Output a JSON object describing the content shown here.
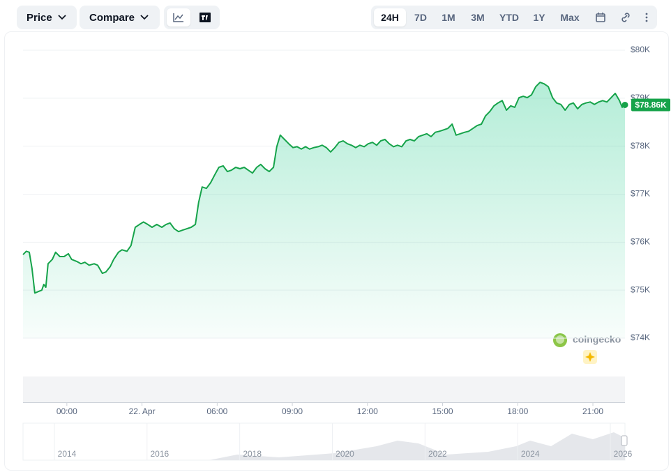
{
  "toolbar": {
    "price": "Price",
    "compare": "Compare",
    "ranges": [
      "24H",
      "7D",
      "1M",
      "3M",
      "YTD",
      "1Y",
      "Max"
    ]
  },
  "watermark": "coingecko",
  "navigator": {
    "years": [
      "2014",
      "2016",
      "2018",
      "2020",
      "2022",
      "2024",
      "2026"
    ]
  },
  "chart_data": {
    "type": "line",
    "color": "#16a34a",
    "fill": true,
    "grid": true,
    "x": [
      -1.75,
      -1.62,
      -1.5,
      -1.39,
      -1.28,
      -1.14,
      -1.0,
      -0.92,
      -0.84,
      -0.75,
      -0.58,
      -0.45,
      -0.28,
      -0.11,
      0.06,
      0.19,
      0.39,
      0.56,
      0.72,
      0.89,
      1.09,
      1.23,
      1.42,
      1.56,
      1.73,
      1.87,
      2.06,
      2.2,
      2.4,
      2.56,
      2.73,
      2.9,
      3.06,
      3.23,
      3.4,
      3.59,
      3.79,
      3.96,
      4.12,
      4.29,
      4.46,
      4.62,
      4.79,
      4.96,
      5.13,
      5.26,
      5.4,
      5.57,
      5.74,
      5.91,
      6.07,
      6.24,
      6.41,
      6.57,
      6.74,
      6.91,
      7.08,
      7.24,
      7.41,
      7.58,
      7.74,
      7.91,
      8.08,
      8.25,
      8.38,
      8.52,
      8.69,
      8.86,
      9.03,
      9.19,
      9.36,
      9.53,
      9.69,
      9.86,
      10.03,
      10.19,
      10.36,
      10.53,
      10.7,
      10.86,
      11.03,
      11.2,
      11.36,
      11.53,
      11.7,
      11.87,
      12.03,
      12.2,
      12.37,
      12.53,
      12.7,
      12.87,
      13.04,
      13.2,
      13.37,
      13.54,
      13.7,
      13.87,
      14.04,
      14.21,
      14.37,
      14.54,
      14.71,
      14.87,
      15.04,
      15.21,
      15.38,
      15.54,
      15.71,
      15.88,
      16.04,
      16.21,
      16.38,
      16.55,
      16.71,
      16.88,
      17.05,
      17.21,
      17.38,
      17.55,
      17.72,
      17.88,
      18.05,
      18.22,
      18.38,
      18.55,
      18.72,
      18.89,
      19.05,
      19.22,
      19.39,
      19.55,
      19.72,
      19.89,
      20.06,
      20.22,
      20.39,
      20.56,
      20.72,
      20.89,
      21.06,
      21.23,
      21.39,
      21.56,
      21.73,
      21.89,
      22.06,
      22.17,
      22.28
    ],
    "series": [
      {
        "values": [
          75740,
          75810,
          75790,
          75450,
          74940,
          74970,
          75000,
          75120,
          75060,
          75550,
          75640,
          75790,
          75700,
          75700,
          75760,
          75640,
          75600,
          75550,
          75580,
          75520,
          75550,
          75520,
          75350,
          75380,
          75490,
          75640,
          75790,
          75840,
          75810,
          75930,
          76310,
          76370,
          76420,
          76370,
          76310,
          76370,
          76310,
          76370,
          76400,
          76280,
          76220,
          76250,
          76280,
          76310,
          76370,
          76830,
          77150,
          77120,
          77240,
          77410,
          77560,
          77590,
          77470,
          77500,
          77560,
          77530,
          77560,
          77500,
          77440,
          77560,
          77620,
          77530,
          77470,
          77560,
          77990,
          78230,
          78140,
          78050,
          77970,
          77990,
          77940,
          77990,
          77940,
          77970,
          77990,
          78020,
          77970,
          77880,
          77970,
          78080,
          78110,
          78050,
          78020,
          77970,
          78020,
          77990,
          78050,
          78080,
          78020,
          78110,
          78140,
          78050,
          77990,
          78020,
          77990,
          78110,
          78140,
          78110,
          78200,
          78230,
          78260,
          78200,
          78290,
          78310,
          78340,
          78370,
          78460,
          78230,
          78260,
          78290,
          78310,
          78370,
          78430,
          78460,
          78630,
          78720,
          78840,
          78900,
          78950,
          78750,
          78840,
          78810,
          79010,
          79040,
          79010,
          79070,
          79240,
          79330,
          79300,
          79240,
          79010,
          78900,
          78870,
          78750,
          78870,
          78900,
          78780,
          78870,
          78900,
          78920,
          78870,
          78920,
          78950,
          78920,
          79010,
          79100,
          78950,
          78810,
          78860
        ]
      }
    ],
    "xlim": [
      -1.75,
      22.28
    ],
    "xticks": [
      {
        "value": 0,
        "label": "00:00"
      },
      {
        "value": 3,
        "label": "22. Apr"
      },
      {
        "value": 6,
        "label": "06:00"
      },
      {
        "value": 9,
        "label": "09:00"
      },
      {
        "value": 12,
        "label": "12:00"
      },
      {
        "value": 15,
        "label": "15:00"
      },
      {
        "value": 18,
        "label": "18:00"
      },
      {
        "value": 21,
        "label": "21:00"
      }
    ],
    "ylim": [
      74000,
      80000
    ],
    "yticks": [
      {
        "value": 74000,
        "label": "$74K"
      },
      {
        "value": 75000,
        "label": "$75K"
      },
      {
        "value": 76000,
        "label": "$76K"
      },
      {
        "value": 77000,
        "label": "$77K"
      },
      {
        "value": 78000,
        "label": "$78K"
      },
      {
        "value": 79000,
        "label": "$79K"
      },
      {
        "value": 80000,
        "label": "$80K"
      }
    ],
    "annotations": [
      {
        "x": 22.28,
        "y": 78860,
        "label": "$78.86K"
      }
    ]
  }
}
